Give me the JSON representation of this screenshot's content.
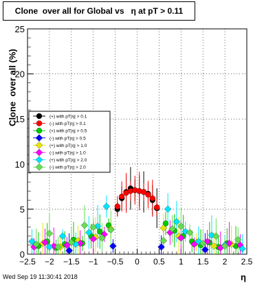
{
  "title": "Clone  over all for Global vs   η at pT > 0.11",
  "footer": "Wed Sep 19 11:30:41 2018",
  "chart_data": {
    "type": "scatter",
    "title": "Clone  over all for Global vs   η at pT > 0.11",
    "xlabel": "η",
    "ylabel": "Clone  over all (%)",
    "xlim": [
      -2.5,
      2.5
    ],
    "ylim": [
      0,
      25
    ],
    "xticks": [
      -2.5,
      -2,
      -1.5,
      -1,
      -0.5,
      0,
      0.5,
      1,
      1.5,
      2,
      2.5
    ],
    "xtick_labels": [
      "−2.5",
      "−2",
      "−1.5",
      "−1",
      "−0.5",
      "0",
      "0.5",
      "1",
      "1.5",
      "2",
      "2.5"
    ],
    "yticks": [
      0,
      5,
      10,
      15,
      20,
      25
    ],
    "ytick_labels": [
      "0",
      "5",
      "10",
      "15",
      "20",
      "25"
    ],
    "grid": true,
    "legend_position": "left",
    "series": [
      {
        "name": "(+) with pT|η| > 0.1",
        "color": "#000000",
        "marker": "circle",
        "x": [
          -0.45,
          -0.35,
          -0.25,
          -0.15,
          -0.05,
          0.05,
          0.15,
          0.25,
          0.35,
          0.45
        ],
        "y": [
          5.0,
          6.2,
          6.9,
          7.3,
          7.1,
          7.0,
          6.9,
          6.7,
          6.0,
          5.1
        ]
      },
      {
        "name": "(-) with pT|η| > 0.1",
        "color": "#ff0000",
        "marker": "circle",
        "x": [
          -0.45,
          -0.35,
          -0.25,
          -0.15,
          -0.05,
          0.05,
          0.15,
          0.25,
          0.35,
          0.45
        ],
        "y": [
          5.3,
          6.4,
          6.8,
          7.0,
          7.1,
          7.0,
          6.9,
          6.6,
          6.2,
          5.2
        ]
      },
      {
        "name": "(+) with pT|η| > 0.5",
        "color": "#00cc00",
        "marker": "circle",
        "x": [
          -2.25,
          -2.05,
          -1.85,
          -1.65,
          -1.45,
          -1.25,
          -1.05,
          -0.85,
          -0.65,
          0.65,
          0.85,
          1.05,
          1.25,
          1.45,
          1.65,
          1.85,
          2.05,
          2.25
        ],
        "y": [
          0.9,
          1.4,
          0.7,
          1.1,
          1.6,
          1.2,
          2.0,
          2.5,
          3.2,
          3.4,
          2.6,
          2.0,
          1.4,
          1.0,
          1.3,
          0.8,
          1.2,
          0.9
        ]
      },
      {
        "name": "(-) with pT|η| > 0.5",
        "color": "#0000ff",
        "marker": "diamond",
        "x": [
          -1.55,
          -0.55,
          0.55,
          1.55
        ],
        "y": [
          0.4,
          0.9,
          0.8,
          0.5
        ]
      },
      {
        "name": "(+) with pT|η| > 1.0",
        "color": "#e6e600",
        "marker": "diamond",
        "x": [
          -2.15,
          -1.75,
          -1.35,
          -0.95,
          -0.6,
          0.6,
          0.95,
          1.35,
          1.75,
          2.15
        ],
        "y": [
          1.2,
          0.8,
          1.5,
          1.9,
          2.8,
          2.9,
          2.0,
          1.3,
          0.9,
          1.1
        ]
      },
      {
        "name": "(-) with pT|η| > 1.0",
        "color": "#ff00ff",
        "marker": "diamond",
        "x": [
          -2.35,
          -2.1,
          -1.9,
          -1.6,
          -1.3,
          -1.0,
          -0.75,
          0.75,
          1.0,
          1.3,
          1.6,
          1.9,
          2.1,
          2.35
        ],
        "y": [
          0.8,
          1.3,
          0.9,
          1.0,
          1.2,
          1.7,
          2.2,
          2.4,
          1.8,
          1.1,
          1.4,
          0.7,
          1.2,
          1.0
        ]
      },
      {
        "name": "(+) with pT|η| > 2.0",
        "color": "#00e5ff",
        "marker": "diamond",
        "x": [
          -2.4,
          -2.0,
          -1.7,
          -1.4,
          -1.1,
          -0.9,
          -0.7,
          0.7,
          0.9,
          1.1,
          1.4,
          1.7,
          2.0,
          2.4
        ],
        "y": [
          1.4,
          0.8,
          2.0,
          1.1,
          2.4,
          3.1,
          5.3,
          5.0,
          3.6,
          2.5,
          1.4,
          2.1,
          1.0,
          0.6
        ]
      },
      {
        "name": "(-) with pT|η| > 2.0",
        "color": "#66dd55",
        "marker": "diamond",
        "x": [
          -2.3,
          -2.0,
          -1.8,
          -1.5,
          -1.2,
          -1.0,
          -0.8,
          -0.6,
          0.6,
          0.8,
          1.0,
          1.2,
          1.5,
          1.8,
          2.0,
          2.3
        ],
        "y": [
          1.1,
          2.3,
          0.8,
          1.3,
          3.2,
          3.0,
          1.8,
          2.7,
          1.5,
          2.8,
          3.1,
          2.4,
          1.2,
          2.0,
          0.9,
          1.6
        ]
      }
    ]
  }
}
